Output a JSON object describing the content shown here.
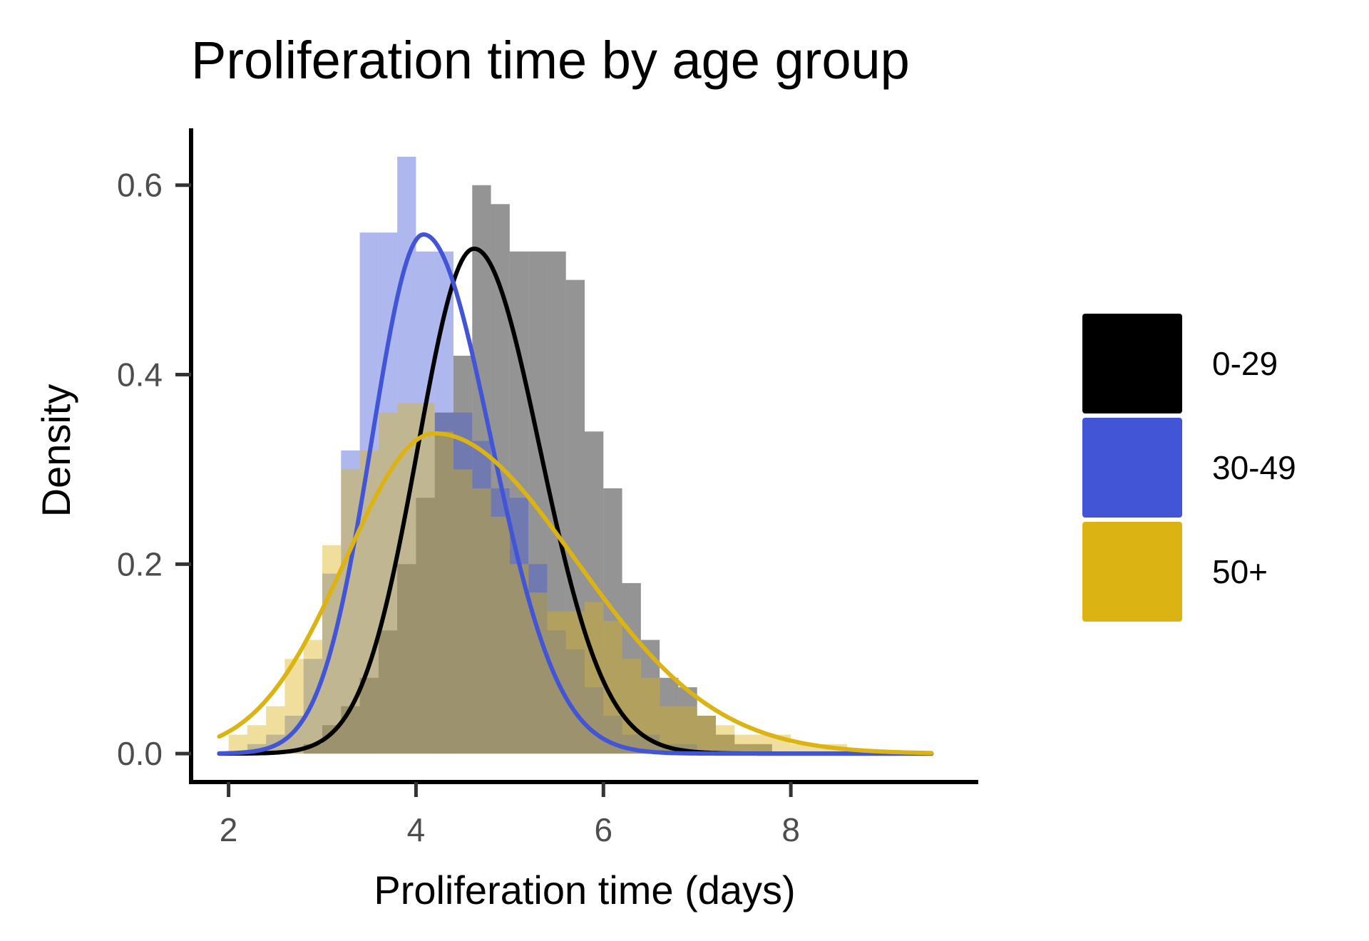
{
  "chart_data": {
    "type": "histogram+density",
    "title": "Proliferation time by age group",
    "xlabel": "Proliferation time (days)",
    "ylabel": "Density",
    "xlim": [
      1.6,
      10.0
    ],
    "ylim": [
      -0.03,
      0.66
    ],
    "xticks": [
      2,
      4,
      6,
      8
    ],
    "yticks": [
      0.0,
      0.2,
      0.4,
      0.6
    ],
    "ytick_labels": [
      "0.0",
      "0.2",
      "0.4",
      "0.6"
    ],
    "grid": false,
    "legend_position": "right",
    "bin_width": 0.2,
    "bin_start": 2.0,
    "series": [
      {
        "name": "0-29",
        "color": "#000000",
        "fill_opacity": 0.42,
        "hist_values": [
          0.0,
          0.0,
          0.0,
          0.0,
          0.01,
          0.03,
          0.05,
          0.08,
          0.13,
          0.2,
          0.27,
          0.36,
          0.42,
          0.6,
          0.58,
          0.53,
          0.53,
          0.53,
          0.5,
          0.34,
          0.28,
          0.18,
          0.12,
          0.08,
          0.07,
          0.04,
          0.02,
          0.01,
          0.01,
          0.0,
          0.0,
          0.0,
          0.0,
          0.0,
          0.0,
          0.0,
          0.0,
          0.0
        ],
        "density_curve": {
          "x_start": 1.9,
          "x_end": 9.5,
          "mode": 4.62,
          "peak": 0.533,
          "sd_left": 0.6,
          "sd_right": 0.7
        }
      },
      {
        "name": "30-49",
        "color": "#4155d6",
        "fill_opacity": 0.42,
        "hist_values": [
          0.0,
          0.01,
          0.02,
          0.04,
          0.1,
          0.19,
          0.32,
          0.55,
          0.55,
          0.63,
          0.53,
          0.53,
          0.36,
          0.33,
          0.28,
          0.27,
          0.2,
          0.13,
          0.11,
          0.07,
          0.04,
          0.02,
          0.02,
          0.01,
          0.01,
          0.0,
          0.0,
          0.0,
          0.0,
          0.0,
          0.0,
          0.0,
          0.0,
          0.0,
          0.0,
          0.0,
          0.0,
          0.0
        ],
        "density_curve": {
          "x_start": 1.9,
          "x_end": 9.5,
          "mode": 4.08,
          "peak": 0.548,
          "sd_left": 0.55,
          "sd_right": 0.72
        }
      },
      {
        "name": "50+",
        "color": "#dbb313",
        "fill_opacity": 0.42,
        "hist_values": [
          0.02,
          0.03,
          0.05,
          0.1,
          0.12,
          0.22,
          0.3,
          0.32,
          0.36,
          0.37,
          0.37,
          0.34,
          0.3,
          0.28,
          0.25,
          0.2,
          0.17,
          0.15,
          0.15,
          0.16,
          0.14,
          0.1,
          0.08,
          0.05,
          0.05,
          0.04,
          0.03,
          0.02,
          0.02,
          0.02,
          0.01,
          0.01,
          0.01,
          0.0,
          0.0,
          0.0,
          0.0,
          0.0
        ],
        "density_curve": {
          "x_start": 1.9,
          "x_end": 9.5,
          "mode": 4.2,
          "peak": 0.338,
          "sd_left": 0.95,
          "sd_right": 1.5
        }
      }
    ]
  }
}
